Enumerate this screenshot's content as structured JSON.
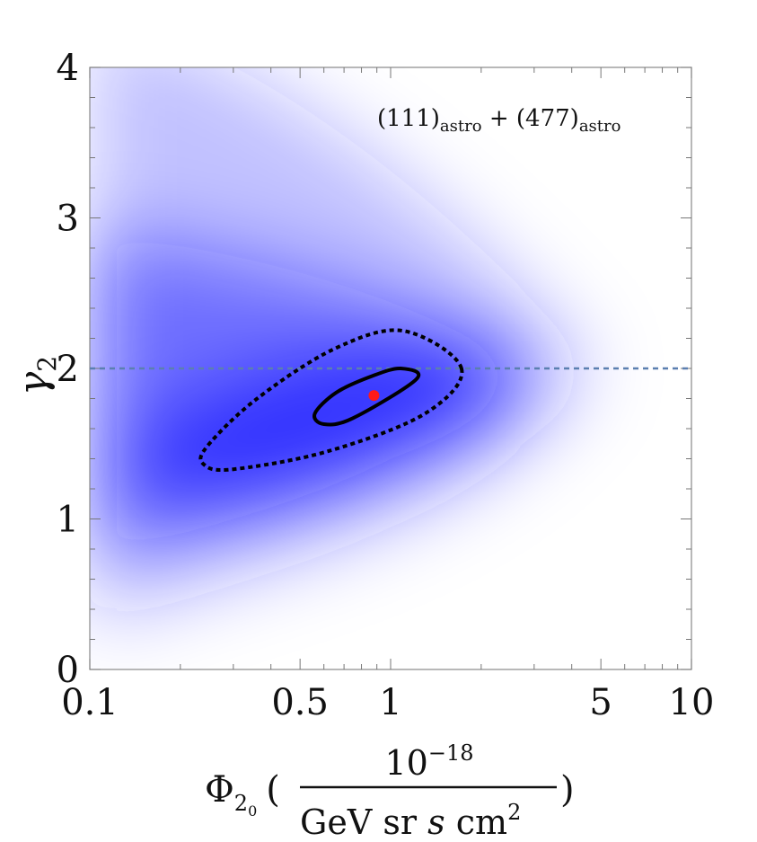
{
  "chart_data": {
    "type": "heatmap",
    "x_scale": "log",
    "xlim": [
      0.1,
      10
    ],
    "ylim": [
      0,
      4
    ],
    "x_ticks": [
      {
        "value": 0.1,
        "label": "0.1"
      },
      {
        "value": 0.5,
        "label": "0.5"
      },
      {
        "value": 1,
        "label": "1"
      },
      {
        "value": 5,
        "label": "5"
      },
      {
        "value": 10,
        "label": "10"
      }
    ],
    "y_ticks": [
      {
        "value": 0,
        "label": "0"
      },
      {
        "value": 1,
        "label": "1"
      },
      {
        "value": 2,
        "label": "2"
      },
      {
        "value": 3,
        "label": "3"
      },
      {
        "value": 4,
        "label": "4"
      }
    ],
    "xlabel": {
      "symbol": "Φ",
      "subscript": "2",
      "subsub": "0",
      "numerator": "10",
      "numerator_exp": "−18",
      "denominator": "GeV sr",
      "denominator_italic": "s",
      "denominator_tail": "cm",
      "denominator_exp": "2"
    },
    "ylabel": {
      "symbol": "γ",
      "subscript": "2"
    },
    "annotation": {
      "part1": "(111)",
      "sub1": "astro",
      "plus": " + ",
      "part2": "(477)",
      "sub2": "astro"
    },
    "colormap": {
      "high": "#1a1aff",
      "low": "#ffffff"
    },
    "reference_line": {
      "y": 2,
      "style": "dashed",
      "color": "#5b7fb0"
    },
    "best_fit": {
      "x": 0.88,
      "y": 1.82,
      "color": "#ff1a1a"
    },
    "contours": [
      {
        "level": "inner",
        "style": "solid",
        "points": [
          [
            0.88,
            1.82
          ],
          [
            1.22,
            1.93
          ],
          [
            1.08,
            2.0
          ],
          [
            0.87,
            1.95
          ],
          [
            0.66,
            1.84
          ],
          [
            0.56,
            1.7
          ],
          [
            0.6,
            1.63
          ],
          [
            0.75,
            1.67
          ]
        ]
      },
      {
        "level": "outer",
        "style": "dotted",
        "points": [
          [
            0.88,
            1.82
          ],
          [
            1.72,
            2.0
          ],
          [
            1.1,
            2.25
          ],
          [
            0.65,
            2.13
          ],
          [
            0.36,
            1.8
          ],
          [
            0.245,
            1.48
          ],
          [
            0.24,
            1.36
          ],
          [
            0.3,
            1.33
          ],
          [
            0.62,
            1.45
          ],
          [
            1.3,
            1.7
          ]
        ]
      }
    ],
    "grid": false,
    "legend": "none"
  }
}
